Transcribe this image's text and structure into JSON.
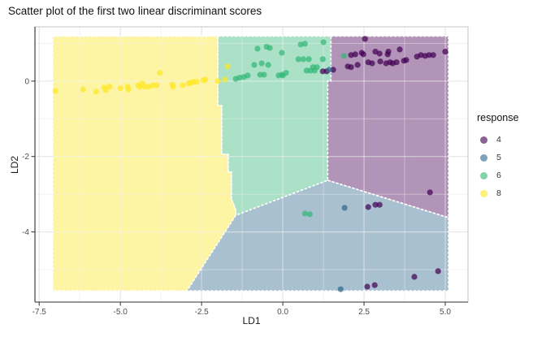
{
  "title": "Scatter plot of the first two linear discriminant scores",
  "chart_data": {
    "type": "scatter",
    "title": "Scatter plot of the first two linear discriminant scores",
    "xlabel": "LD1",
    "ylabel": "LD2",
    "xlim": [
      -7.63,
      5.7
    ],
    "ylim": [
      -5.86,
      1.44
    ],
    "grid": true,
    "x_major_ticks": [
      -7.5,
      -5.0,
      -2.5,
      0.0,
      2.5,
      5.0
    ],
    "x_tick_labels": [
      "-7.5",
      "-5.0",
      "-2.5",
      "0.0",
      "2.5",
      "5.0"
    ],
    "x_minor_ticks": [
      -6.25,
      -3.75,
      -1.25,
      1.25,
      3.75
    ],
    "y_major_ticks": [
      0,
      -2,
      -4
    ],
    "y_tick_labels": [
      "0",
      "-2",
      "-4"
    ],
    "y_minor_ticks": [
      1,
      -1,
      -3,
      -5
    ],
    "region_opacity": 0.42,
    "point_opacity": 0.72,
    "legend": {
      "title": "response",
      "position": "right",
      "entries": [
        {
          "label": "4",
          "color": "#440154"
        },
        {
          "label": "5",
          "color": "#31688E"
        },
        {
          "label": "6",
          "color": "#35B779"
        },
        {
          "label": "8",
          "color": "#FDE725"
        }
      ]
    },
    "regions": [
      {
        "name": "region-8",
        "color": "#FDE725",
        "polygon": [
          [
            -7.08,
            1.19
          ],
          [
            -2.0,
            1.19
          ],
          [
            -2.0,
            -0.65
          ],
          [
            -1.88,
            -0.65
          ],
          [
            -1.88,
            -1.94
          ],
          [
            -1.68,
            -1.94
          ],
          [
            -1.68,
            -2.41
          ],
          [
            -1.58,
            -2.41
          ],
          [
            -1.58,
            -3.13
          ],
          [
            -1.45,
            -3.41
          ],
          [
            -1.45,
            -3.56
          ],
          [
            -2.95,
            -5.56
          ],
          [
            -7.08,
            -5.56
          ]
        ]
      },
      {
        "name": "region-6",
        "color": "#35B779",
        "polygon": [
          [
            -2.0,
            1.19
          ],
          [
            1.48,
            1.19
          ],
          [
            1.48,
            0.0
          ],
          [
            1.38,
            0.0
          ],
          [
            1.38,
            -2.63
          ],
          [
            -1.45,
            -3.56
          ],
          [
            -1.45,
            -3.41
          ],
          [
            -1.58,
            -3.13
          ],
          [
            -1.58,
            -2.41
          ],
          [
            -1.68,
            -2.41
          ],
          [
            -1.68,
            -1.94
          ],
          [
            -1.88,
            -1.94
          ],
          [
            -1.88,
            -0.65
          ],
          [
            -2.0,
            -0.65
          ]
        ]
      },
      {
        "name": "region-4",
        "color": "#440154",
        "polygon": [
          [
            1.48,
            1.19
          ],
          [
            5.1,
            1.19
          ],
          [
            5.1,
            -3.62
          ],
          [
            1.38,
            -2.63
          ],
          [
            1.38,
            0.0
          ],
          [
            1.48,
            0.0
          ]
        ]
      },
      {
        "name": "region-5",
        "color": "#31688E",
        "polygon": [
          [
            1.38,
            -2.63
          ],
          [
            5.1,
            -3.62
          ],
          [
            5.1,
            -5.56
          ],
          [
            -2.95,
            -5.56
          ],
          [
            -1.45,
            -3.56
          ]
        ]
      }
    ],
    "series": [
      {
        "name": "8",
        "color": "#FDE725",
        "points": [
          [
            -7.0,
            -0.26
          ],
          [
            -6.15,
            -0.22
          ],
          [
            -5.75,
            -0.28
          ],
          [
            -5.5,
            -0.17
          ],
          [
            -5.45,
            -0.24
          ],
          [
            -5.33,
            -0.15
          ],
          [
            -5.0,
            -0.19
          ],
          [
            -4.78,
            -0.15
          ],
          [
            -4.75,
            -0.22
          ],
          [
            -4.45,
            -0.11
          ],
          [
            -4.4,
            -0.15
          ],
          [
            -4.33,
            -0.06
          ],
          [
            -4.25,
            -0.15
          ],
          [
            -4.13,
            -0.15
          ],
          [
            -4.0,
            -0.11
          ],
          [
            -3.88,
            -0.11
          ],
          [
            -3.78,
            0.22
          ],
          [
            -3.4,
            -0.09
          ],
          [
            -3.38,
            -0.15
          ],
          [
            -3.08,
            -0.11
          ],
          [
            -2.9,
            -0.06
          ],
          [
            -2.83,
            -0.04
          ],
          [
            -2.75,
            -0.02
          ],
          [
            -2.65,
            -0.02
          ],
          [
            -2.45,
            0.02
          ],
          [
            -2.38,
            0.04
          ],
          [
            -2.0,
            0.0
          ],
          [
            -1.78,
            0.04
          ],
          [
            -1.7,
            0.39
          ]
        ]
      },
      {
        "name": "6",
        "color": "#35B779",
        "points": [
          [
            -1.45,
            0.06
          ],
          [
            -1.33,
            0.09
          ],
          [
            -1.2,
            0.11
          ],
          [
            -1.08,
            0.15
          ],
          [
            -0.88,
            0.43
          ],
          [
            -0.78,
            0.86
          ],
          [
            -0.7,
            0.17
          ],
          [
            -0.65,
            0.47
          ],
          [
            -0.58,
            0.17
          ],
          [
            -0.5,
            0.91
          ],
          [
            -0.45,
            0.43
          ],
          [
            -0.4,
            0.88
          ],
          [
            -0.13,
            0.15
          ],
          [
            -0.03,
            0.75
          ],
          [
            -0.03,
            0.17
          ],
          [
            0.0,
            0.15
          ],
          [
            0.1,
            0.22
          ],
          [
            0.48,
            0.58
          ],
          [
            0.55,
            0.97
          ],
          [
            0.63,
            0.58
          ],
          [
            0.68,
            0.99
          ],
          [
            0.73,
            0.28
          ],
          [
            0.8,
            0.58
          ],
          [
            0.85,
            0.28
          ],
          [
            0.93,
            0.37
          ],
          [
            0.98,
            0.28
          ],
          [
            1.05,
            0.37
          ],
          [
            1.23,
            0.58
          ],
          [
            1.25,
            1.03
          ],
          [
            1.88,
            0.67
          ],
          [
            0.68,
            -3.51
          ],
          [
            0.83,
            -3.53
          ]
        ]
      },
      {
        "name": "4",
        "color": "#440154",
        "points": [
          [
            1.23,
            0.26
          ],
          [
            1.35,
            0.26
          ],
          [
            1.55,
            0.3
          ],
          [
            2.0,
            0.39
          ],
          [
            2.1,
            0.37
          ],
          [
            2.1,
            0.69
          ],
          [
            2.23,
            0.71
          ],
          [
            2.3,
            0.43
          ],
          [
            2.43,
            0.75
          ],
          [
            2.48,
            0.71
          ],
          [
            2.53,
            1.12
          ],
          [
            2.63,
            0.5
          ],
          [
            2.75,
            0.47
          ],
          [
            2.85,
            0.78
          ],
          [
            2.98,
            0.73
          ],
          [
            3.0,
            0.52
          ],
          [
            3.18,
            0.47
          ],
          [
            3.23,
            0.71
          ],
          [
            3.25,
            0.78
          ],
          [
            3.3,
            0.5
          ],
          [
            3.38,
            0.47
          ],
          [
            3.5,
            0.5
          ],
          [
            3.6,
            0.84
          ],
          [
            3.73,
            0.54
          ],
          [
            3.8,
            0.56
          ],
          [
            4.13,
            0.65
          ],
          [
            4.25,
            0.69
          ],
          [
            4.38,
            0.67
          ],
          [
            4.5,
            0.69
          ],
          [
            4.63,
            0.69
          ],
          [
            5.0,
            0.78
          ],
          [
            4.53,
            -2.95
          ],
          [
            2.63,
            -3.34
          ],
          [
            2.85,
            -3.28
          ],
          [
            2.98,
            -3.28
          ],
          [
            2.6,
            -5.45
          ],
          [
            2.83,
            -5.41
          ],
          [
            4.05,
            -5.19
          ],
          [
            4.78,
            -5.04
          ]
        ]
      },
      {
        "name": "5",
        "color": "#31688E",
        "points": [
          [
            1.43,
            0.3
          ],
          [
            1.9,
            -3.36
          ],
          [
            1.78,
            -5.52
          ]
        ]
      }
    ]
  }
}
